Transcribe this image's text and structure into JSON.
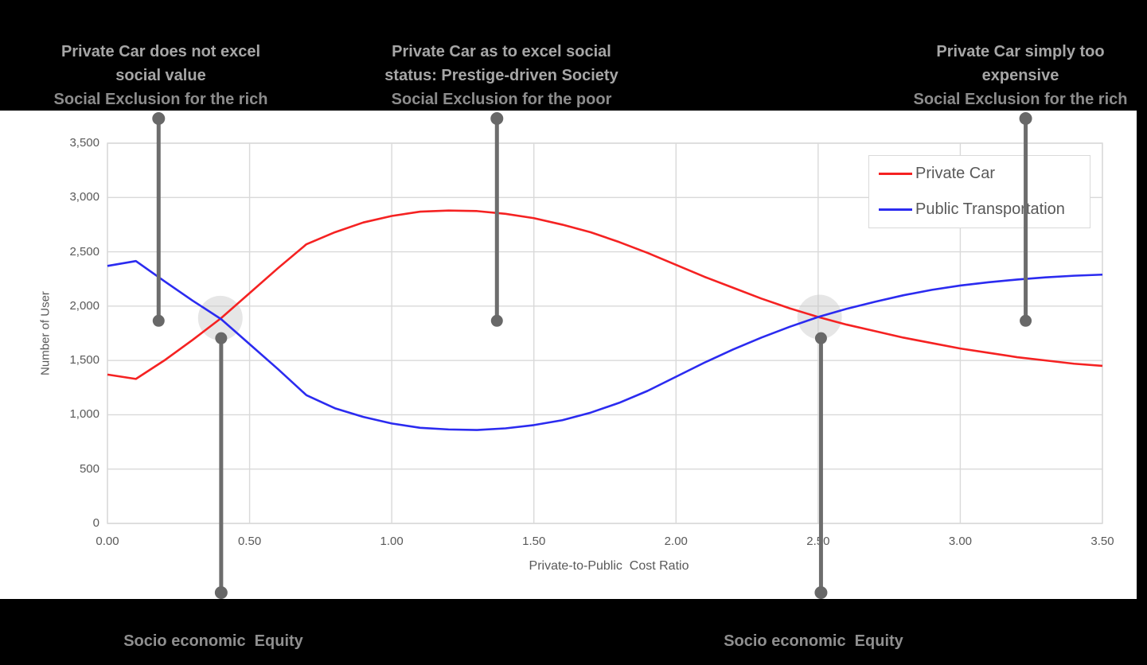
{
  "annotations": {
    "top_left": {
      "line1": "Private Car does not excel",
      "line2": "social value",
      "sub": "Social Exclusion for the rich"
    },
    "top_middle": {
      "line1": "Private Car as to excel social",
      "line2": "status: Prestige-driven Society",
      "sub": "Social Exclusion for the poor"
    },
    "top_right": {
      "line1": "Private Car simply too",
      "line2": "expensive",
      "sub": "Social Exclusion for the rich"
    },
    "bottom_left": {
      "label": "Socio economic  Equity"
    },
    "bottom_right": {
      "label": "Socio economic  Equity"
    }
  },
  "legend": {
    "items": [
      {
        "label": "Private Car",
        "color": "#f52222"
      },
      {
        "label": "Public Transportation",
        "color": "#2b2bf0"
      }
    ]
  },
  "colors": {
    "background": "#000000",
    "panel": "#ffffff",
    "grid": "#d9d9d9",
    "axis_text": "#595959",
    "callout": "#6d6d6d",
    "callout_dot": "#686868",
    "highlight_circle": "#c8c8c8",
    "annotation_primary": "#a6a6a6",
    "annotation_secondary": "#8c8c8c"
  },
  "chart_data": {
    "type": "line",
    "title": "",
    "xlabel": "Private-to-Public  Cost Ratio",
    "ylabel": "Number of User",
    "xlim": [
      0,
      3.5
    ],
    "ylim": [
      0,
      3500
    ],
    "grid": true,
    "legend_position": "top-right",
    "x_ticks": [
      "0.00",
      "0.50",
      "1.00",
      "1.50",
      "2.00",
      "2.50",
      "3.00",
      "3.50"
    ],
    "y_ticks": [
      "0",
      "500",
      "1,000",
      "1,500",
      "2,000",
      "2,500",
      "3,000",
      "3,500"
    ],
    "x": [
      0.0,
      0.1,
      0.2,
      0.3,
      0.4,
      0.5,
      0.6,
      0.7,
      0.8,
      0.9,
      1.0,
      1.1,
      1.2,
      1.3,
      1.4,
      1.5,
      1.6,
      1.7,
      1.8,
      1.9,
      2.0,
      2.1,
      2.2,
      2.3,
      2.4,
      2.5,
      2.6,
      2.7,
      2.8,
      2.9,
      3.0,
      3.1,
      3.2,
      3.3,
      3.4,
      3.5
    ],
    "series": [
      {
        "name": "Private Car",
        "color": "#f52222",
        "values": [
          1370,
          1330,
          1500,
          1690,
          1890,
          2120,
          2350,
          2570,
          2680,
          2770,
          2830,
          2870,
          2880,
          2875,
          2850,
          2810,
          2750,
          2680,
          2590,
          2490,
          2380,
          2270,
          2170,
          2070,
          1980,
          1900,
          1830,
          1770,
          1710,
          1660,
          1610,
          1570,
          1530,
          1500,
          1470,
          1450
        ]
      },
      {
        "name": "Public Transportation",
        "color": "#2b2bf0",
        "values": [
          2370,
          2415,
          2230,
          2050,
          1880,
          1650,
          1420,
          1180,
          1060,
          980,
          920,
          880,
          865,
          860,
          875,
          905,
          950,
          1020,
          1110,
          1220,
          1350,
          1480,
          1600,
          1710,
          1810,
          1900,
          1975,
          2040,
          2100,
          2150,
          2190,
          2220,
          2245,
          2265,
          2280,
          2290
        ]
      }
    ],
    "intersections": [
      {
        "x": 0.397,
        "y": 1890
      },
      {
        "x": 2.505,
        "y": 1900
      }
    ],
    "callouts": [
      {
        "x": 0.18,
        "anchor_y": 1865,
        "side": "top",
        "points_to": "top_left"
      },
      {
        "x": 1.37,
        "anchor_y": 1865,
        "side": "top",
        "points_to": "top_middle"
      },
      {
        "x": 3.23,
        "anchor_y": 1865,
        "side": "top",
        "points_to": "top_right"
      },
      {
        "x": 0.4,
        "anchor_y": 1705,
        "side": "bottom",
        "points_to": "bottom_left"
      },
      {
        "x": 2.51,
        "anchor_y": 1705,
        "side": "bottom",
        "points_to": "bottom_right"
      }
    ]
  }
}
